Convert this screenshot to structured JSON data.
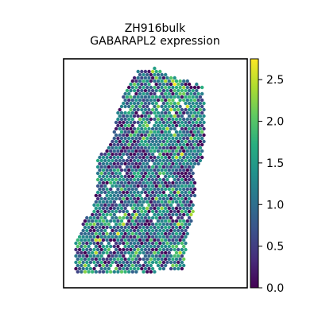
{
  "chart_data": {
    "type": "scatter",
    "title_line1": "ZH916bulk",
    "title_line2": "GABARAPL2 expression",
    "xlabel": "",
    "ylabel": "",
    "colormap": "viridis",
    "colorbar": {
      "range": [
        0.0,
        2.75
      ],
      "ticks": [
        0.0,
        0.5,
        1.0,
        1.5,
        2.0,
        2.5
      ],
      "tick_labels": [
        "0.0",
        "0.5",
        "1.0",
        "1.5",
        "2.0",
        "2.5"
      ]
    },
    "grid": false,
    "spots": {
      "shape": "tissue-section-hexagonal",
      "tissue_outline_xy": [
        [
          0.4,
          0.05
        ],
        [
          0.5,
          0.04
        ],
        [
          0.6,
          0.08
        ],
        [
          0.7,
          0.1
        ],
        [
          0.76,
          0.12
        ],
        [
          0.77,
          0.3
        ],
        [
          0.76,
          0.44
        ],
        [
          0.71,
          0.48
        ],
        [
          0.72,
          0.58
        ],
        [
          0.7,
          0.7
        ],
        [
          0.67,
          0.78
        ],
        [
          0.66,
          0.92
        ],
        [
          0.52,
          0.93
        ],
        [
          0.38,
          0.94
        ],
        [
          0.2,
          0.94
        ],
        [
          0.06,
          0.94
        ],
        [
          0.06,
          0.82
        ],
        [
          0.1,
          0.72
        ],
        [
          0.16,
          0.66
        ],
        [
          0.18,
          0.56
        ],
        [
          0.18,
          0.44
        ],
        [
          0.26,
          0.36
        ],
        [
          0.3,
          0.22
        ],
        [
          0.34,
          0.12
        ]
      ],
      "mean_value": 1.1,
      "value_spread": 0.55,
      "note_regions": [
        {
          "cx": 0.6,
          "cy": 0.16,
          "r": 0.12,
          "bias": 0.8
        },
        {
          "cx": 0.35,
          "cy": 0.45,
          "r": 0.1,
          "bias": -0.9
        },
        {
          "cx": 0.67,
          "cy": 0.5,
          "r": 0.07,
          "bias": -0.9
        },
        {
          "cx": 0.45,
          "cy": 0.72,
          "r": 0.08,
          "bias": -0.5
        },
        {
          "cx": 0.22,
          "cy": 0.84,
          "r": 0.08,
          "bias": 0.2
        },
        {
          "cx": 0.52,
          "cy": 0.3,
          "r": 0.1,
          "bias": 0.2
        }
      ]
    }
  }
}
